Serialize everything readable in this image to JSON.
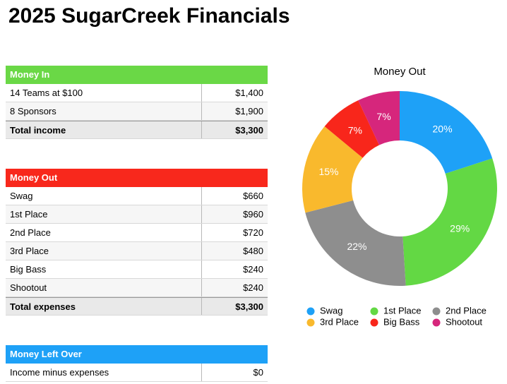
{
  "title": "2025 SugarCreek Financials",
  "tables": [
    {
      "header": "Money In",
      "color": "#6ad846",
      "rows": [
        [
          "14 Teams at $100",
          "$1,400"
        ],
        [
          "8 Sponsors",
          "$1,900"
        ]
      ],
      "total": [
        "Total income",
        "$3,300"
      ]
    },
    {
      "header": "Money Out",
      "color": "#f8281c",
      "rows": [
        [
          "Swag",
          "$660"
        ],
        [
          "1st Place",
          "$960"
        ],
        [
          "2nd Place",
          "$720"
        ],
        [
          "3rd Place",
          "$480"
        ],
        [
          "Big Bass",
          "$240"
        ],
        [
          "Shootout",
          "$240"
        ]
      ],
      "total": [
        "Total expenses",
        "$3,300"
      ]
    },
    {
      "header": "Money Left Over",
      "color": "#1ea1f7",
      "rows": [
        [
          "Income minus expenses",
          "$0"
        ]
      ]
    }
  ],
  "chart_data": {
    "type": "donut",
    "title": "Money Out",
    "categories": [
      "Swag",
      "1st Place",
      "2nd Place",
      "3rd Place",
      "Big Bass",
      "Shootout"
    ],
    "values": [
      20,
      29,
      22,
      15,
      7,
      7
    ],
    "value_labels": [
      "20%",
      "29%",
      "22%",
      "15%",
      "7%",
      "7%"
    ],
    "colors": [
      "#1ea1f7",
      "#63d844",
      "#8e8e8e",
      "#f9b92d",
      "#f8261b",
      "#d6267c"
    ]
  }
}
